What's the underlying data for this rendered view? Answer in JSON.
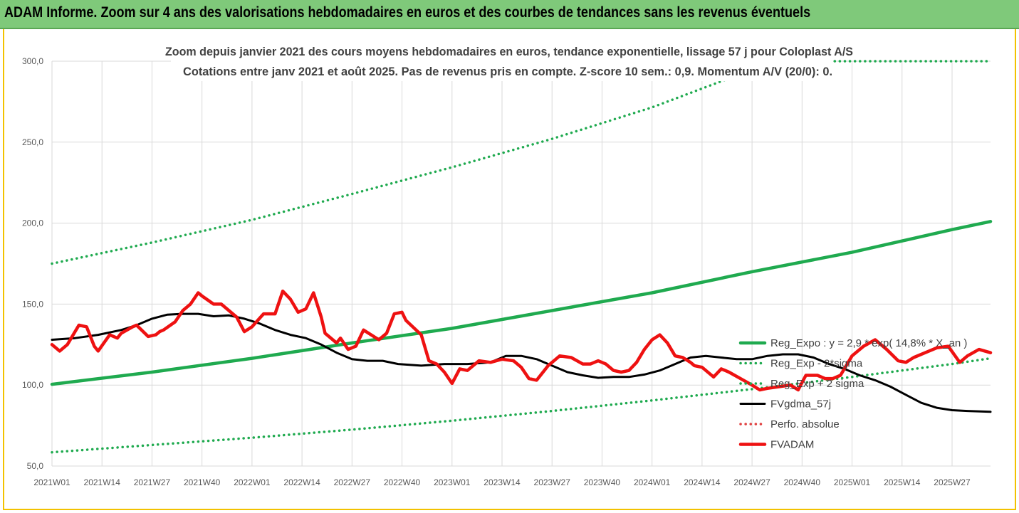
{
  "header": {
    "title": "ADAM Informe. Zoom sur 4 ans des valorisations hebdomadaires en euros et des courbes de tendances sans les revenus éventuels"
  },
  "colors": {
    "banner": "#7fc97a",
    "frame": "#f2c200",
    "trend": "#1faa4f",
    "price": "#ee1111",
    "smooth": "#000000",
    "perf": "#e04040"
  },
  "chart_data": {
    "type": "line",
    "subtitle_line1": "Zoom depuis janvier 2021 des cours moyens hebdomadaires en euros, tendance exponentielle, lissage 57 j pour Coloplast A/S",
    "subtitle_line2": "Cotations entre janv 2021 et août 2025.  Pas de revenus pris en compte. Z-score 10 sem.: 0,9. Momentum A/V (20/0): 0.",
    "y_ticks": [
      "50,0",
      "100,0",
      "150,0",
      "200,0",
      "250,0",
      "300,0"
    ],
    "ylim": [
      50,
      300
    ],
    "x_tick_labels": [
      "2021W01",
      "2021W14",
      "2021W27",
      "2021W40",
      "2022W01",
      "2022W14",
      "2022W27",
      "2022W40",
      "2023W01",
      "2023W14",
      "2023W27",
      "2023W40",
      "2024W01",
      "2024W14",
      "2024W27",
      "2024W40",
      "2025W01",
      "2025W14",
      "2025W27"
    ],
    "x_tick_index": [
      0,
      13,
      26,
      39,
      52,
      65,
      78,
      91,
      104,
      117,
      130,
      143,
      156,
      169,
      182,
      195,
      208,
      221,
      234
    ],
    "x_max_index": 244,
    "grid": "horizontal and vertical",
    "legend_position": "right",
    "series": [
      {
        "name": "Reg_Expo : y = 2,9 * exp( 14,8% *  X_an )",
        "style": "solid-thick",
        "color": "#1faa4f",
        "x": [
          0,
          26,
          52,
          78,
          104,
          130,
          156,
          182,
          208,
          234,
          244
        ],
        "values": [
          100.5,
          108,
          116.5,
          126,
          135,
          146,
          157,
          170,
          182,
          196,
          201
        ]
      },
      {
        "name": "Reg_Exp - 2*sigma",
        "style": "dotted",
        "color": "#1faa4f",
        "x": [
          0,
          26,
          52,
          78,
          104,
          130,
          156,
          182,
          208,
          234,
          244
        ],
        "values": [
          58.5,
          63,
          67.5,
          72.5,
          78,
          84,
          90.5,
          97.5,
          105,
          113,
          116.5
        ]
      },
      {
        "name": "Reg_Exp + 2 sigma",
        "style": "dotted",
        "color": "#1faa4f",
        "x": [
          0,
          26,
          52,
          78,
          104,
          130,
          156,
          170,
          175,
          182,
          195,
          208,
          244
        ],
        "values": [
          175,
          188,
          202,
          218,
          234.5,
          252,
          271.5,
          284,
          288.5,
          300,
          300,
          300,
          300
        ]
      },
      {
        "name": "FVgdma_57j",
        "style": "solid",
        "color": "#000000",
        "x": [
          0,
          6,
          12,
          18,
          22,
          26,
          30,
          34,
          38,
          42,
          46,
          50,
          54,
          58,
          62,
          66,
          70,
          74,
          78,
          82,
          86,
          90,
          96,
          102,
          108,
          114,
          118,
          122,
          126,
          130,
          134,
          138,
          142,
          146,
          150,
          154,
          158,
          162,
          166,
          170,
          174,
          178,
          182,
          186,
          190,
          194,
          198,
          202,
          206,
          210,
          214,
          218,
          222,
          226,
          230,
          234,
          238,
          244
        ],
        "values": [
          128,
          129,
          131,
          134,
          137,
          141,
          143.5,
          144,
          144,
          142.5,
          143,
          141,
          138,
          134,
          131,
          129,
          125,
          120,
          116,
          115,
          115,
          113,
          112,
          113,
          113,
          114,
          118,
          118,
          116,
          112,
          108,
          106,
          104.5,
          105,
          105,
          106.5,
          109,
          113,
          117,
          118,
          117,
          116,
          116,
          118,
          119,
          119,
          117,
          113,
          110,
          106,
          103,
          99,
          94,
          89,
          86,
          84.5,
          84,
          83.5
        ]
      },
      {
        "name": "Perfo. absolue",
        "style": "dotted",
        "color": "#e04040",
        "x": [],
        "values": []
      },
      {
        "name": "FVADAM",
        "style": "solid-thick",
        "color": "#ee1111",
        "x": [
          0,
          2,
          4,
          7,
          9,
          11,
          12,
          15,
          17,
          18,
          21,
          22,
          25,
          27,
          28,
          29,
          32,
          34,
          36,
          38,
          39,
          42,
          44,
          46,
          48,
          50,
          52,
          55,
          58,
          60,
          62,
          64,
          66,
          68,
          70,
          71,
          74,
          75,
          77,
          79,
          81,
          85,
          87,
          89,
          91,
          92,
          96,
          98,
          100,
          102,
          104,
          106,
          108,
          111,
          114,
          117,
          120,
          122,
          124,
          126,
          129,
          132,
          135,
          138,
          140,
          142,
          144,
          146,
          148,
          150,
          152,
          154,
          156,
          158,
          160,
          162,
          164,
          166,
          167,
          169,
          172,
          174,
          176,
          179,
          182,
          184,
          186,
          189,
          192,
          194,
          196,
          199,
          201,
          203,
          205,
          208,
          211,
          214,
          217,
          220,
          222,
          224,
          227,
          230,
          233,
          236,
          238,
          241,
          244
        ],
        "values": [
          125,
          121,
          125,
          137,
          136,
          124,
          121,
          131,
          129,
          132,
          136,
          137,
          130,
          131,
          133,
          134,
          139,
          146,
          150,
          157,
          155,
          150,
          150,
          146,
          142,
          133,
          136,
          144,
          144,
          158,
          153,
          145,
          147,
          157,
          142,
          132,
          126,
          129,
          122,
          124,
          134,
          128,
          132,
          144,
          145,
          140,
          131,
          115,
          113,
          108,
          101,
          110,
          109,
          115,
          114,
          116,
          115,
          111,
          104,
          103,
          112,
          118,
          117,
          113,
          113,
          115,
          113,
          109,
          108,
          109,
          114,
          122,
          128,
          131,
          126,
          118,
          117,
          114,
          112,
          111,
          105,
          110,
          108,
          104,
          100,
          97,
          98,
          99,
          100,
          97,
          106,
          106,
          104,
          104,
          106,
          118,
          124,
          128,
          122,
          115,
          114,
          117,
          120,
          123,
          124,
          114,
          118,
          122,
          120
        ]
      }
    ]
  }
}
